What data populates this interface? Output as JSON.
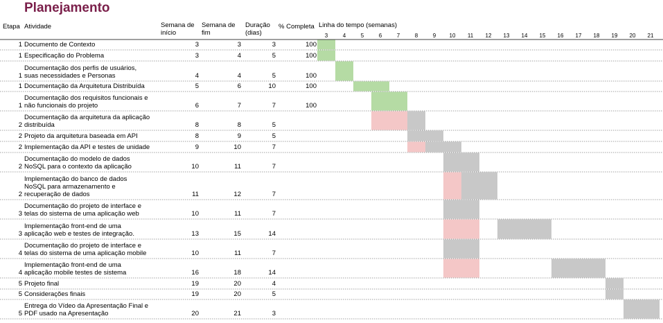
{
  "title": "Planejamento",
  "headers": {
    "etapa": "Etapa",
    "atividade": "Atividade",
    "inicio": [
      "Semana de",
      "início"
    ],
    "fim": [
      "Semana de",
      "fim"
    ],
    "duracao": [
      "Duração",
      "(dias)"
    ],
    "completa": "% Completa",
    "timeline": "Linha do tempo (semanas)"
  },
  "weeks": [
    3,
    4,
    5,
    6,
    7,
    8,
    9,
    10,
    11,
    12,
    13,
    14,
    15,
    16,
    17,
    18,
    19,
    20,
    21
  ],
  "colors": {
    "title": "#7a1f4a",
    "done": "#b5dba4",
    "gray": "#c8c8c8",
    "pink": "#f4c7c7"
  },
  "rows": [
    {
      "etapa": "1",
      "lines": [
        "Documento de Contexto"
      ],
      "inicio": "3",
      "fim": "3",
      "duracao": "3",
      "completa": "100"
    },
    {
      "etapa": "1",
      "lines": [
        "Especificação do Problema"
      ],
      "inicio": "3",
      "fim": "4",
      "duracao": "5",
      "completa": "100"
    },
    {
      "etapa": "1",
      "lines": [
        "Documentação dos perfis de usuários,",
        "suas necessidades e Personas"
      ],
      "inicio": "4",
      "fim": "4",
      "duracao": "5",
      "completa": "100"
    },
    {
      "etapa": "1",
      "lines": [
        "Documentação da Arquitetura Distribuída"
      ],
      "inicio": "5",
      "fim": "6",
      "duracao": "10",
      "completa": "100"
    },
    {
      "etapa": "1",
      "lines": [
        "Documentação dos requisitos funcionais e",
        "não funcionais do projeto"
      ],
      "inicio": "6",
      "fim": "7",
      "duracao": "7",
      "completa": "100"
    },
    {
      "etapa": "2",
      "lines": [
        "Documentação da arquitetura da aplicação",
        "distribuída"
      ],
      "inicio": "8",
      "fim": "8",
      "duracao": "5",
      "completa": ""
    },
    {
      "etapa": "2",
      "lines": [
        "Projeto da arquitetura baseada em API"
      ],
      "inicio": "8",
      "fim": "9",
      "duracao": "5",
      "completa": ""
    },
    {
      "etapa": "2",
      "lines": [
        "Implementação da API e testes de unidade"
      ],
      "inicio": "9",
      "fim": "10",
      "duracao": "7",
      "completa": ""
    },
    {
      "etapa": "2",
      "lines": [
        "Documentação do modelo de dados",
        "NoSQL para o contexto da aplicação"
      ],
      "inicio": "10",
      "fim": "11",
      "duracao": "7",
      "completa": ""
    },
    {
      "etapa": "2",
      "lines": [
        "Implementação do banco de dados",
        "NoSQL para armazenamento e",
        "recuperação de dados"
      ],
      "inicio": "11",
      "fim": "12",
      "duracao": "7",
      "completa": ""
    },
    {
      "etapa": "3",
      "lines": [
        "Documentação do projeto de interface e",
        "telas do sistema de uma aplicação web"
      ],
      "inicio": "10",
      "fim": "11",
      "duracao": "7",
      "completa": ""
    },
    {
      "etapa": "3",
      "lines": [
        "Implementação front-end de uma",
        "aplicação web e testes de integração."
      ],
      "inicio": "13",
      "fim": "15",
      "duracao": "14",
      "completa": ""
    },
    {
      "etapa": "4",
      "lines": [
        "Documentação do projeto de interface e",
        "telas do sistema de uma aplicação mobile"
      ],
      "inicio": "10",
      "fim": "11",
      "duracao": "7",
      "completa": ""
    },
    {
      "etapa": "4",
      "lines": [
        "Implementação front-end de uma",
        "aplicação mobile testes de sistema"
      ],
      "inicio": "16",
      "fim": "18",
      "duracao": "14",
      "completa": ""
    },
    {
      "etapa": "5",
      "lines": [
        "Projeto final"
      ],
      "inicio": "19",
      "fim": "20",
      "duracao": "4",
      "completa": ""
    },
    {
      "etapa": "5",
      "lines": [
        "Considerações finais"
      ],
      "inicio": "19",
      "fim": "20",
      "duracao": "5",
      "completa": ""
    },
    {
      "etapa": "5",
      "lines": [
        "Entrega do Vídeo da Apresentação Final e",
        "PDF usado na Apresentação"
      ],
      "inicio": "20",
      "fim": "21",
      "duracao": "3",
      "completa": ""
    }
  ]
}
